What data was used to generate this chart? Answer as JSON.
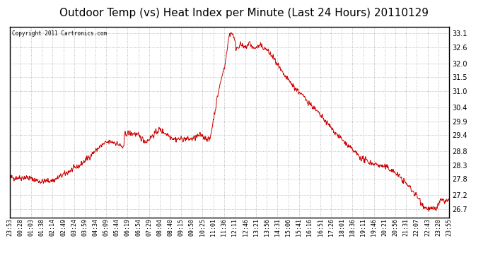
{
  "title": "Outdoor Temp (vs) Heat Index per Minute (Last 24 Hours) 20110129",
  "copyright": "Copyright 2011 Cartronics.com",
  "line_color": "#cc0000",
  "background_color": "#ffffff",
  "grid_color": "#aaaaaa",
  "ylim": [
    26.4,
    33.35
  ],
  "yticks": [
    26.7,
    27.2,
    27.8,
    28.3,
    28.8,
    29.4,
    29.9,
    30.4,
    31.0,
    31.5,
    32.0,
    32.6,
    33.1
  ],
  "xtick_labels": [
    "23:53",
    "00:28",
    "01:03",
    "01:38",
    "02:14",
    "02:49",
    "03:24",
    "03:59",
    "04:34",
    "05:09",
    "05:44",
    "06:19",
    "06:54",
    "07:29",
    "08:04",
    "08:40",
    "09:15",
    "09:50",
    "10:25",
    "11:01",
    "11:36",
    "12:11",
    "12:46",
    "13:21",
    "13:56",
    "14:31",
    "15:06",
    "15:41",
    "16:16",
    "16:51",
    "17:26",
    "18:01",
    "18:36",
    "19:11",
    "19:46",
    "20:21",
    "20:56",
    "21:31",
    "22:07",
    "22:43",
    "23:20",
    "23:55"
  ],
  "n_points": 1440,
  "seed": 42,
  "title_fontsize": 11,
  "tick_fontsize": 7,
  "xtick_fontsize": 6
}
